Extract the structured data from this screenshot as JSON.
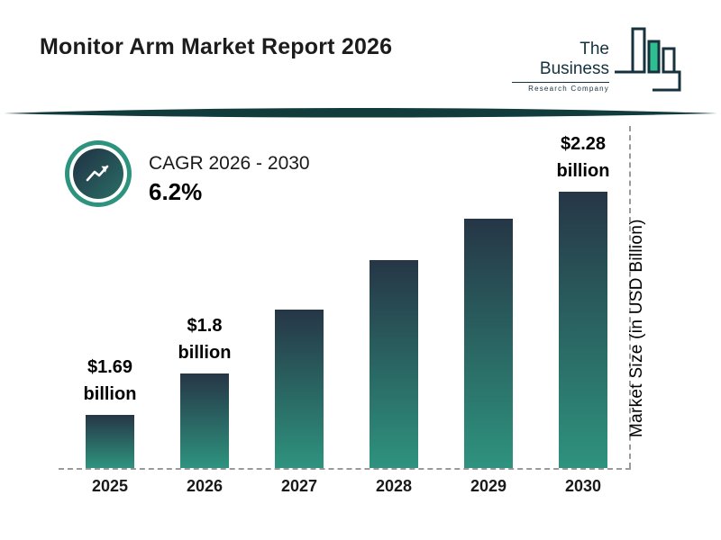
{
  "header": {
    "title": "Monitor Arm Market Report 2026"
  },
  "logo": {
    "line1": "The Business",
    "line2": "Research Company"
  },
  "cagr": {
    "label": "CAGR 2026 - 2030",
    "value": "6.2%"
  },
  "colors": {
    "bar_top": "#263646",
    "bar_bottom": "#2e937e",
    "accent_teal": "#2e937e",
    "divider": "#123c3c",
    "logo_dark": "#16323e",
    "logo_green": "#2fbe8f"
  },
  "chart_data": {
    "type": "bar",
    "title": "Monitor Arm Market Report 2026",
    "categories": [
      "2025",
      "2026",
      "2027",
      "2028",
      "2029",
      "2030"
    ],
    "values": [
      1.69,
      1.8,
      1.97,
      2.1,
      2.21,
      2.28
    ],
    "value_labels": {
      "2025": [
        "$1.69",
        "billion"
      ],
      "2026": [
        "$1.8",
        "billion"
      ],
      "2030": [
        "$2.28",
        "billion"
      ]
    },
    "xlabel": "",
    "ylabel": "Market Size (in USD Billion)",
    "ylim": [
      1.55,
      2.35
    ],
    "grid": false,
    "legend": "none",
    "annotations": [
      "CAGR 2026 - 2030",
      "6.2%"
    ]
  }
}
